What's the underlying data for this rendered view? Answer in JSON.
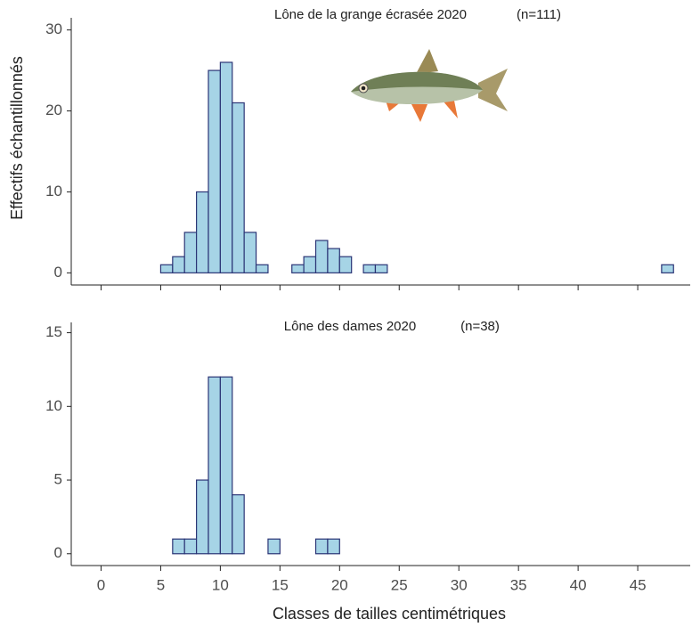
{
  "chart_data": [
    {
      "type": "histogram",
      "title": "Lône de la grange écrasée 2020",
      "annotation": "(n=111)",
      "ylabel": "Effectifs échantillonnés",
      "bins": [
        0,
        1,
        2,
        3,
        4,
        5,
        6,
        7,
        8,
        9,
        10,
        11,
        12,
        13,
        14,
        15,
        16,
        17,
        18,
        19,
        20,
        21,
        22,
        23,
        24,
        25,
        26,
        27,
        28,
        29,
        30,
        31,
        32,
        33,
        34,
        35,
        36,
        37,
        38,
        39,
        40,
        41,
        42,
        43,
        44,
        45,
        46,
        47,
        48
      ],
      "values": [
        0,
        0,
        0,
        0,
        0,
        1,
        2,
        5,
        10,
        25,
        26,
        21,
        5,
        1,
        0,
        0,
        1,
        2,
        4,
        3,
        2,
        0,
        1,
        1,
        0,
        0,
        0,
        0,
        0,
        0,
        0,
        0,
        0,
        0,
        0,
        0,
        0,
        0,
        0,
        0,
        0,
        0,
        0,
        0,
        0,
        0,
        0,
        1
      ],
      "color": "#a6d4e6",
      "edgecolor": "#2b3576",
      "xlim": [
        -2.5,
        49.4
      ],
      "xticks": [
        0,
        5,
        10,
        15,
        20,
        25,
        30,
        35,
        40,
        45
      ],
      "ylim": [
        -1.5,
        31.5
      ],
      "yticks": [
        0,
        10,
        20,
        30
      ]
    },
    {
      "type": "histogram",
      "title": "Lône des dames 2020",
      "annotation": "(n=38)",
      "xlabel": "Classes de tailles centimétriques",
      "bins": [
        0,
        1,
        2,
        3,
        4,
        5,
        6,
        7,
        8,
        9,
        10,
        11,
        12,
        13,
        14,
        15,
        16,
        17,
        18,
        19,
        20,
        21,
        22,
        23,
        24,
        25,
        26,
        27,
        28,
        29,
        30,
        31,
        32,
        33,
        34,
        35,
        36,
        37,
        38,
        39,
        40,
        41,
        42,
        43,
        44,
        45,
        46,
        47,
        48
      ],
      "values": [
        0,
        0,
        0,
        0,
        0,
        0,
        1,
        1,
        5,
        12,
        12,
        4,
        0,
        0,
        1,
        0,
        0,
        0,
        1,
        1,
        0,
        0,
        0,
        0,
        0,
        0,
        0,
        0,
        0,
        0,
        0,
        0,
        0,
        0,
        0,
        0,
        0,
        0,
        0,
        0,
        0,
        0,
        0,
        0,
        0,
        0,
        0,
        0
      ],
      "color": "#a6d4e6",
      "edgecolor": "#2b3576",
      "xlim": [
        -2.5,
        49.4
      ],
      "xticks": [
        0,
        5,
        10,
        15,
        20,
        25,
        30,
        35,
        40,
        45
      ],
      "ylim": [
        -0.8,
        15.7
      ],
      "yticks": [
        0,
        5,
        10,
        15
      ]
    }
  ]
}
